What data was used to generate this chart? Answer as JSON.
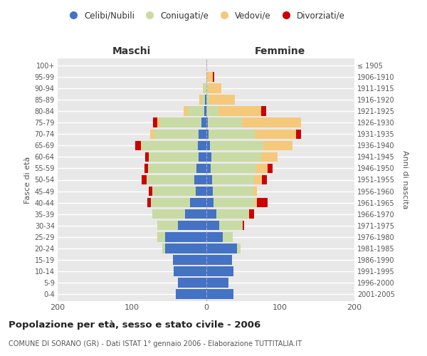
{
  "age_groups": [
    "0-4",
    "5-9",
    "10-14",
    "15-19",
    "20-24",
    "25-29",
    "30-34",
    "35-39",
    "40-44",
    "45-49",
    "50-54",
    "55-59",
    "60-64",
    "65-69",
    "70-74",
    "75-79",
    "80-84",
    "85-89",
    "90-94",
    "95-99",
    "100+"
  ],
  "birth_years": [
    "2001-2005",
    "1996-2000",
    "1991-1995",
    "1986-1990",
    "1981-1985",
    "1976-1980",
    "1971-1975",
    "1966-1970",
    "1961-1965",
    "1956-1960",
    "1951-1955",
    "1946-1950",
    "1941-1945",
    "1936-1940",
    "1931-1935",
    "1926-1930",
    "1921-1925",
    "1916-1920",
    "1911-1915",
    "1906-1910",
    "≤ 1905"
  ],
  "maschi": {
    "celibi": [
      41,
      38,
      44,
      45,
      55,
      55,
      38,
      28,
      22,
      14,
      16,
      13,
      10,
      11,
      10,
      6,
      2,
      1,
      0,
      0,
      0
    ],
    "coniugati": [
      0,
      0,
      0,
      0,
      4,
      10,
      28,
      44,
      52,
      58,
      64,
      65,
      67,
      76,
      60,
      56,
      22,
      5,
      3,
      0,
      0
    ],
    "vedovi": [
      0,
      0,
      0,
      0,
      0,
      1,
      0,
      0,
      0,
      0,
      0,
      0,
      0,
      1,
      5,
      4,
      6,
      3,
      1,
      0,
      0
    ],
    "divorziati": [
      0,
      0,
      0,
      0,
      0,
      0,
      0,
      0,
      5,
      5,
      7,
      5,
      5,
      7,
      0,
      5,
      0,
      0,
      0,
      0,
      0
    ]
  },
  "femmine": {
    "nubili": [
      37,
      30,
      37,
      35,
      42,
      23,
      18,
      14,
      10,
      9,
      8,
      6,
      7,
      5,
      3,
      2,
      0,
      0,
      0,
      0,
      0
    ],
    "coniugate": [
      0,
      0,
      0,
      0,
      5,
      13,
      31,
      44,
      56,
      55,
      57,
      62,
      67,
      72,
      63,
      46,
      17,
      4,
      2,
      0,
      0
    ],
    "vedove": [
      0,
      0,
      0,
      0,
      0,
      0,
      0,
      0,
      3,
      5,
      10,
      15,
      22,
      40,
      55,
      80,
      57,
      35,
      19,
      9,
      1
    ],
    "divorziate": [
      0,
      0,
      0,
      0,
      0,
      0,
      2,
      7,
      14,
      0,
      7,
      7,
      0,
      0,
      7,
      0,
      7,
      0,
      0,
      2,
      0
    ]
  },
  "colors": {
    "celibi": "#4472C4",
    "coniugati": "#c8dba4",
    "vedovi": "#f5c97a",
    "divorziati": "#cc0000"
  },
  "xlim": 200,
  "title": "Popolazione per età, sesso e stato civile - 2006",
  "subtitle": "COMUNE DI SORANO (GR) - Dati ISTAT 1° gennaio 2006 - Elaborazione TUTTITALIA.IT",
  "ylabel_left": "Fasce di età",
  "ylabel_right": "Anni di nascita",
  "xlabel_left": "Maschi",
  "xlabel_right": "Femmine"
}
